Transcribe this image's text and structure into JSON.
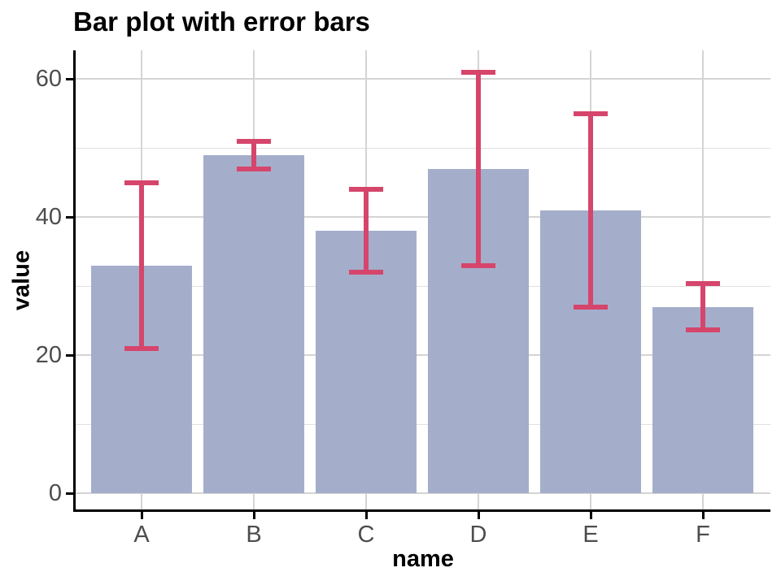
{
  "chart_data": {
    "type": "bar",
    "title": "Bar plot with error bars",
    "xlabel": "name",
    "ylabel": "value",
    "categories": [
      "A",
      "B",
      "C",
      "D",
      "E",
      "F"
    ],
    "values": [
      33,
      49,
      38,
      47,
      41,
      27
    ],
    "error_low": [
      21,
      47,
      32,
      33,
      27,
      23.7
    ],
    "error_high": [
      45,
      51,
      44,
      61,
      55,
      30.4
    ],
    "yticks": [
      0,
      20,
      40,
      60
    ],
    "yticks_minor": [
      10,
      30,
      50
    ],
    "ylim": [
      0,
      64
    ],
    "grid": true,
    "legend": false,
    "colors": {
      "bar_fill": "#A4AECB",
      "error_bar": "#D6456B",
      "grid_major": "#D4D4D4",
      "grid_minor": "#E1E1E1",
      "axis_line": "#000000",
      "tick_label": "#4D4D4D",
      "title": "#000000"
    }
  }
}
